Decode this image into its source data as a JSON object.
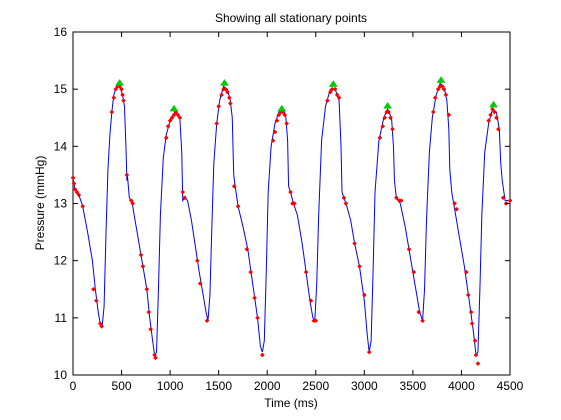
{
  "chart_data": {
    "type": "line",
    "title": "Showing all stationary points",
    "xlabel": "Time (ms)",
    "ylabel": "Pressure (mmHg)",
    "xlim": [
      0,
      4500
    ],
    "ylim": [
      10,
      16
    ],
    "xticks": [
      0,
      500,
      1000,
      1500,
      2000,
      2500,
      3000,
      3500,
      4000,
      4500
    ],
    "yticks": [
      10,
      11,
      12,
      13,
      14,
      15,
      16
    ],
    "grid": false,
    "legend": "none",
    "colors": {
      "line": "#0000ff",
      "points": "#ff0000",
      "peaks": "#00cc00"
    },
    "series": [
      {
        "values": [
          [
            0,
            13.45
          ],
          [
            20,
            13.25
          ],
          [
            50,
            13.2
          ],
          [
            100,
            12.95
          ],
          [
            150,
            12.5
          ],
          [
            200,
            12.0
          ],
          [
            230,
            11.5
          ],
          [
            260,
            11.1
          ],
          [
            280,
            10.9
          ],
          [
            300,
            10.85
          ],
          [
            320,
            11.2
          ],
          [
            340,
            12.5
          ],
          [
            360,
            13.6
          ],
          [
            380,
            14.2
          ],
          [
            400,
            14.6
          ],
          [
            420,
            14.9
          ],
          [
            450,
            15.05
          ],
          [
            480,
            15.05
          ],
          [
            510,
            14.9
          ],
          [
            530,
            14.7
          ],
          [
            545,
            14.0
          ],
          [
            555,
            13.4
          ],
          [
            560,
            13.5
          ],
          [
            580,
            13.1
          ],
          [
            610,
            13.0
          ],
          [
            640,
            12.7
          ],
          [
            680,
            12.3
          ],
          [
            720,
            11.9
          ],
          [
            760,
            11.5
          ],
          [
            790,
            11.0
          ],
          [
            820,
            10.6
          ],
          [
            840,
            10.35
          ],
          [
            860,
            10.4
          ],
          [
            880,
            11.5
          ],
          [
            900,
            12.8
          ],
          [
            930,
            13.8
          ],
          [
            960,
            14.2
          ],
          [
            1000,
            14.45
          ],
          [
            1050,
            14.6
          ],
          [
            1080,
            14.55
          ],
          [
            1100,
            14.5
          ],
          [
            1120,
            13.9
          ],
          [
            1130,
            13.05
          ],
          [
            1150,
            13.1
          ],
          [
            1180,
            13.05
          ],
          [
            1220,
            12.7
          ],
          [
            1260,
            12.25
          ],
          [
            1300,
            11.8
          ],
          [
            1340,
            11.4
          ],
          [
            1370,
            11.1
          ],
          [
            1390,
            10.95
          ],
          [
            1410,
            11.4
          ],
          [
            1430,
            12.6
          ],
          [
            1450,
            13.7
          ],
          [
            1480,
            14.4
          ],
          [
            1510,
            14.8
          ],
          [
            1550,
            15.05
          ],
          [
            1590,
            15.0
          ],
          [
            1620,
            14.8
          ],
          [
            1640,
            14.5
          ],
          [
            1655,
            13.5
          ],
          [
            1670,
            13.3
          ],
          [
            1700,
            12.95
          ],
          [
            1750,
            12.6
          ],
          [
            1800,
            12.2
          ],
          [
            1850,
            11.6
          ],
          [
            1900,
            11.0
          ],
          [
            1930,
            10.5
          ],
          [
            1950,
            10.4
          ],
          [
            1970,
            10.6
          ],
          [
            1990,
            11.8
          ],
          [
            2010,
            13.2
          ],
          [
            2040,
            14.0
          ],
          [
            2080,
            14.4
          ],
          [
            2120,
            14.6
          ],
          [
            2160,
            14.65
          ],
          [
            2190,
            14.55
          ],
          [
            2210,
            14.1
          ],
          [
            2220,
            13.3
          ],
          [
            2240,
            13.2
          ],
          [
            2270,
            13.0
          ],
          [
            2310,
            12.8
          ],
          [
            2360,
            12.3
          ],
          [
            2400,
            11.8
          ],
          [
            2440,
            11.3
          ],
          [
            2470,
            11.0
          ],
          [
            2490,
            10.95
          ],
          [
            2510,
            11.6
          ],
          [
            2530,
            12.8
          ],
          [
            2560,
            14.1
          ],
          [
            2600,
            14.7
          ],
          [
            2650,
            15.0
          ],
          [
            2700,
            15.0
          ],
          [
            2740,
            14.8
          ],
          [
            2760,
            14.0
          ],
          [
            2770,
            13.2
          ],
          [
            2790,
            13.1
          ],
          [
            2820,
            12.95
          ],
          [
            2860,
            12.7
          ],
          [
            2900,
            12.3
          ],
          [
            2950,
            11.9
          ],
          [
            3000,
            11.3
          ],
          [
            3030,
            10.7
          ],
          [
            3050,
            10.4
          ],
          [
            3070,
            10.6
          ],
          [
            3090,
            11.8
          ],
          [
            3110,
            13.2
          ],
          [
            3150,
            14.1
          ],
          [
            3200,
            14.5
          ],
          [
            3240,
            14.65
          ],
          [
            3280,
            14.5
          ],
          [
            3300,
            14.0
          ],
          [
            3310,
            13.4
          ],
          [
            3330,
            13.1
          ],
          [
            3370,
            13.0
          ],
          [
            3420,
            12.6
          ],
          [
            3480,
            12.0
          ],
          [
            3530,
            11.5
          ],
          [
            3570,
            11.1
          ],
          [
            3600,
            10.95
          ],
          [
            3620,
            11.5
          ],
          [
            3640,
            12.7
          ],
          [
            3670,
            13.9
          ],
          [
            3700,
            14.5
          ],
          [
            3740,
            14.9
          ],
          [
            3780,
            15.1
          ],
          [
            3820,
            15.05
          ],
          [
            3850,
            14.8
          ],
          [
            3870,
            14.3
          ],
          [
            3880,
            13.6
          ],
          [
            3900,
            13.2
          ],
          [
            3930,
            12.9
          ],
          [
            3980,
            12.4
          ],
          [
            4030,
            11.9
          ],
          [
            4080,
            11.3
          ],
          [
            4120,
            10.8
          ],
          [
            4150,
            10.35
          ],
          [
            4170,
            10.4
          ],
          [
            4190,
            11.5
          ],
          [
            4210,
            12.8
          ],
          [
            4240,
            13.9
          ],
          [
            4280,
            14.4
          ],
          [
            4320,
            14.65
          ],
          [
            4360,
            14.6
          ],
          [
            4390,
            14.3
          ],
          [
            4405,
            13.7
          ],
          [
            4420,
            13.4
          ],
          [
            4450,
            13.05
          ],
          [
            4500,
            13.05
          ]
        ]
      }
    ],
    "stationary_points": [
      [
        0,
        13.45
      ],
      [
        10,
        13.35
      ],
      [
        20,
        13.25
      ],
      [
        40,
        13.2
      ],
      [
        60,
        13.15
      ],
      [
        100,
        12.95
      ],
      [
        210,
        11.5
      ],
      [
        240,
        11.3
      ],
      [
        280,
        10.9
      ],
      [
        295,
        10.85
      ],
      [
        400,
        14.6
      ],
      [
        420,
        14.85
      ],
      [
        440,
        15.0
      ],
      [
        460,
        15.05
      ],
      [
        480,
        15.05
      ],
      [
        500,
        15.0
      ],
      [
        510,
        14.9
      ],
      [
        520,
        14.8
      ],
      [
        555,
        13.5
      ],
      [
        600,
        13.05
      ],
      [
        615,
        13.0
      ],
      [
        700,
        12.1
      ],
      [
        720,
        11.9
      ],
      [
        760,
        11.5
      ],
      [
        780,
        11.1
      ],
      [
        800,
        10.8
      ],
      [
        840,
        10.35
      ],
      [
        850,
        10.3
      ],
      [
        960,
        14.15
      ],
      [
        980,
        14.35
      ],
      [
        1000,
        14.45
      ],
      [
        1020,
        14.5
      ],
      [
        1040,
        14.55
      ],
      [
        1060,
        14.6
      ],
      [
        1080,
        14.55
      ],
      [
        1100,
        14.5
      ],
      [
        1130,
        13.2
      ],
      [
        1150,
        13.1
      ],
      [
        1280,
        12.0
      ],
      [
        1310,
        11.6
      ],
      [
        1380,
        10.95
      ],
      [
        1480,
        14.4
      ],
      [
        1500,
        14.7
      ],
      [
        1530,
        14.9
      ],
      [
        1550,
        15.0
      ],
      [
        1570,
        15.0
      ],
      [
        1590,
        14.95
      ],
      [
        1610,
        14.85
      ],
      [
        1620,
        14.75
      ],
      [
        1660,
        13.3
      ],
      [
        1700,
        12.95
      ],
      [
        1790,
        12.2
      ],
      [
        1830,
        11.8
      ],
      [
        1870,
        11.35
      ],
      [
        1900,
        11.0
      ],
      [
        1950,
        10.35
      ],
      [
        2060,
        14.1
      ],
      [
        2080,
        14.25
      ],
      [
        2100,
        14.45
      ],
      [
        2120,
        14.55
      ],
      [
        2140,
        14.6
      ],
      [
        2160,
        14.6
      ],
      [
        2180,
        14.55
      ],
      [
        2200,
        14.4
      ],
      [
        2240,
        13.2
      ],
      [
        2260,
        13.0
      ],
      [
        2280,
        13.0
      ],
      [
        2400,
        11.8
      ],
      [
        2450,
        11.3
      ],
      [
        2480,
        10.95
      ],
      [
        2500,
        10.95
      ],
      [
        2620,
        14.8
      ],
      [
        2650,
        14.95
      ],
      [
        2670,
        15.0
      ],
      [
        2700,
        15.0
      ],
      [
        2720,
        14.9
      ],
      [
        2740,
        14.85
      ],
      [
        2790,
        13.1
      ],
      [
        2810,
        13.0
      ],
      [
        2900,
        12.3
      ],
      [
        2950,
        11.9
      ],
      [
        3000,
        11.4
      ],
      [
        3050,
        10.4
      ],
      [
        3160,
        14.15
      ],
      [
        3190,
        14.35
      ],
      [
        3210,
        14.5
      ],
      [
        3230,
        14.6
      ],
      [
        3250,
        14.6
      ],
      [
        3270,
        14.5
      ],
      [
        3290,
        14.3
      ],
      [
        3330,
        13.1
      ],
      [
        3360,
        13.05
      ],
      [
        3380,
        13.05
      ],
      [
        3460,
        12.2
      ],
      [
        3510,
        11.8
      ],
      [
        3560,
        11.1
      ],
      [
        3600,
        10.95
      ],
      [
        3710,
        14.6
      ],
      [
        3730,
        14.85
      ],
      [
        3760,
        15.0
      ],
      [
        3780,
        15.05
      ],
      [
        3800,
        15.05
      ],
      [
        3820,
        15.0
      ],
      [
        3840,
        14.9
      ],
      [
        3870,
        14.55
      ],
      [
        3930,
        13.0
      ],
      [
        3950,
        12.9
      ],
      [
        4050,
        11.8
      ],
      [
        4070,
        11.4
      ],
      [
        4100,
        11.1
      ],
      [
        4110,
        10.9
      ],
      [
        4140,
        10.6
      ],
      [
        4150,
        10.35
      ],
      [
        4170,
        10.2
      ],
      [
        4280,
        14.45
      ],
      [
        4300,
        14.55
      ],
      [
        4320,
        14.65
      ],
      [
        4340,
        14.6
      ],
      [
        4360,
        14.5
      ],
      [
        4380,
        14.3
      ],
      [
        4430,
        13.1
      ],
      [
        4460,
        13.0
      ],
      [
        4500,
        13.05
      ]
    ],
    "peak_points": [
      [
        480,
        15.1
      ],
      [
        1040,
        14.65
      ],
      [
        1560,
        15.1
      ],
      [
        2150,
        14.65
      ],
      [
        2680,
        15.08
      ],
      [
        3240,
        14.7
      ],
      [
        3790,
        15.15
      ],
      [
        4330,
        14.72
      ]
    ]
  }
}
